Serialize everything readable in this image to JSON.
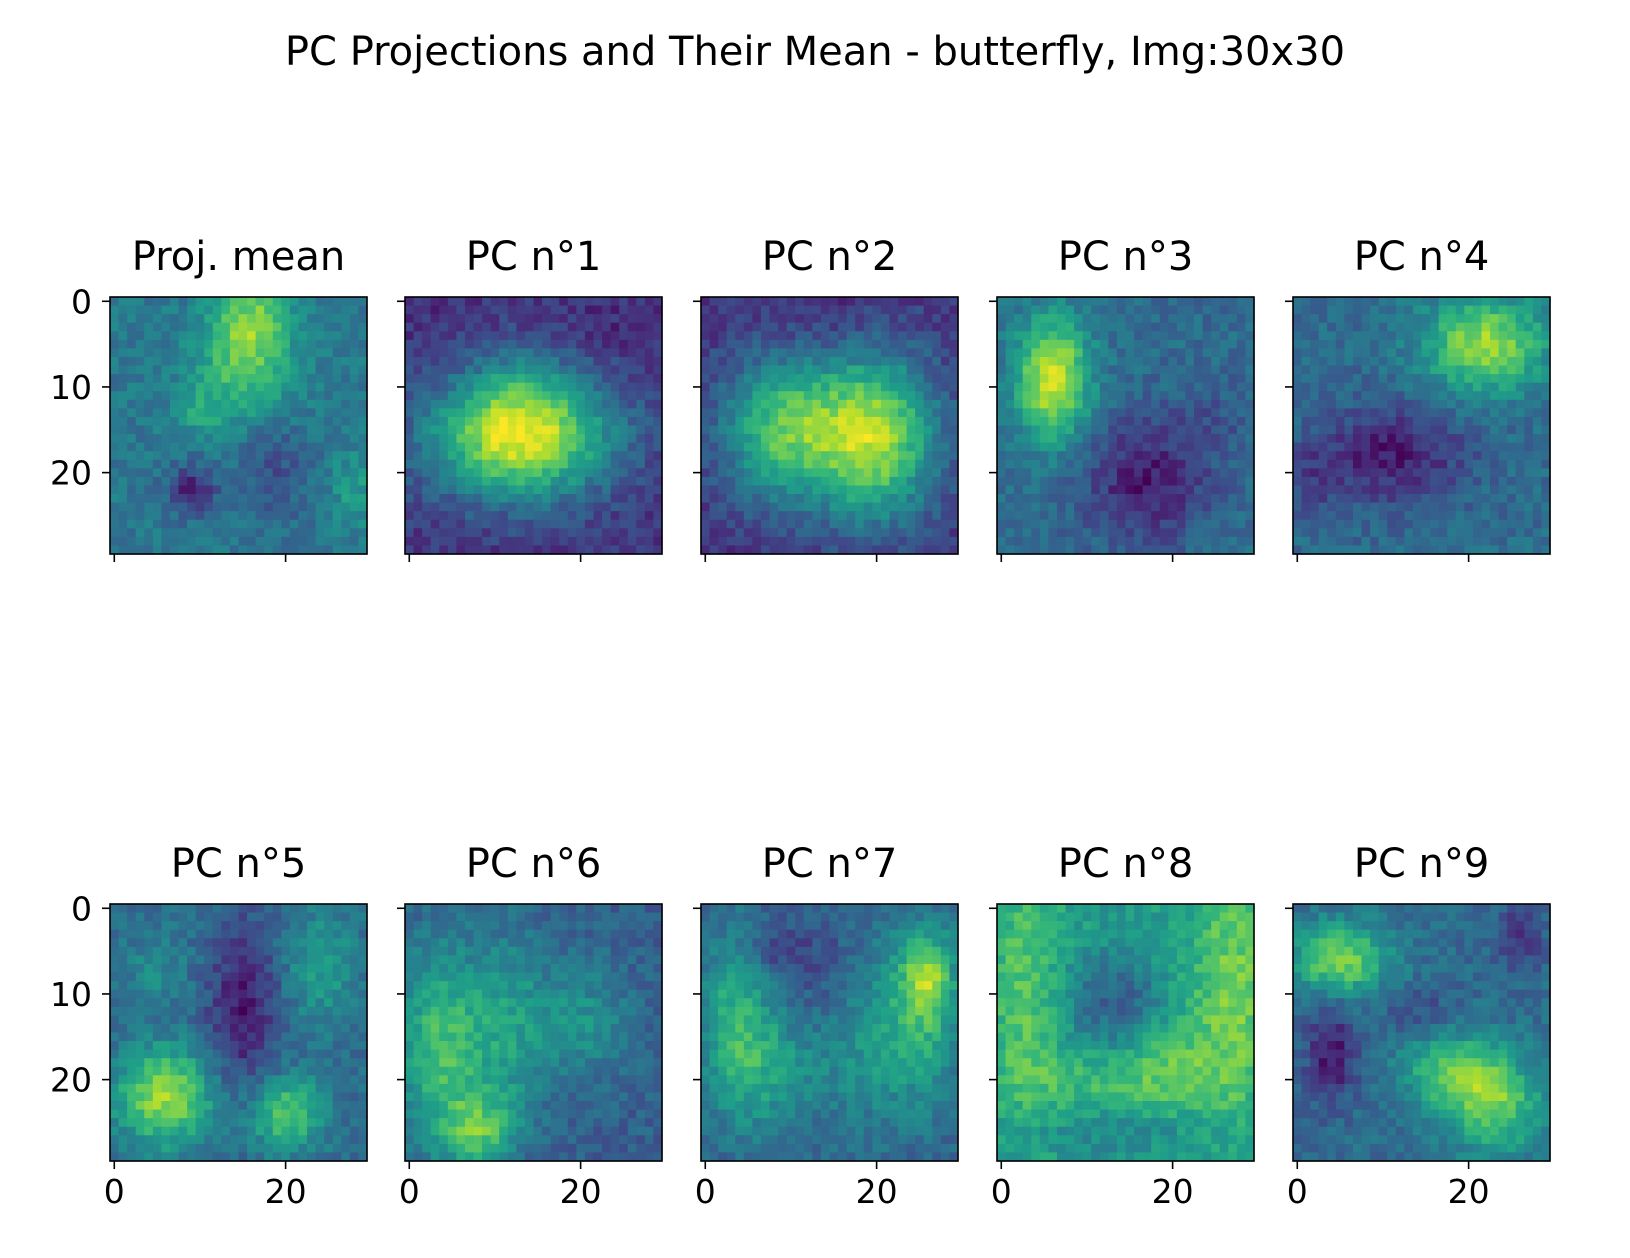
{
  "figure": {
    "suptitle": "PC Projections and Their Mean - butterfly, Img:30x30"
  },
  "colormap": "viridis",
  "chart_data": [
    {
      "type": "heatmap",
      "title": "Proj. mean",
      "size": [
        30,
        30
      ],
      "xticks": [
        0,
        20
      ],
      "yticks": [
        0,
        10,
        20
      ],
      "xtick_labels_shown": false,
      "ytick_labels_shown": true
    },
    {
      "type": "heatmap",
      "title": "PC n°1",
      "size": [
        30,
        30
      ],
      "xticks": [
        0,
        20
      ],
      "yticks": [
        0,
        10,
        20
      ],
      "xtick_labels_shown": false,
      "ytick_labels_shown": false
    },
    {
      "type": "heatmap",
      "title": "PC n°2",
      "size": [
        30,
        30
      ],
      "xticks": [
        0,
        20
      ],
      "yticks": [
        0,
        10,
        20
      ],
      "xtick_labels_shown": false,
      "ytick_labels_shown": false
    },
    {
      "type": "heatmap",
      "title": "PC n°3",
      "size": [
        30,
        30
      ],
      "xticks": [
        0,
        20
      ],
      "yticks": [
        0,
        10,
        20
      ],
      "xtick_labels_shown": false,
      "ytick_labels_shown": false
    },
    {
      "type": "heatmap",
      "title": "PC n°4",
      "size": [
        30,
        30
      ],
      "xticks": [
        0,
        20
      ],
      "yticks": [
        0,
        10,
        20
      ],
      "xtick_labels_shown": false,
      "ytick_labels_shown": false
    },
    {
      "type": "heatmap",
      "title": "PC n°5",
      "size": [
        30,
        30
      ],
      "xticks": [
        0,
        20
      ],
      "yticks": [
        0,
        10,
        20
      ],
      "xtick_labels_shown": true,
      "ytick_labels_shown": true
    },
    {
      "type": "heatmap",
      "title": "PC n°6",
      "size": [
        30,
        30
      ],
      "xticks": [
        0,
        20
      ],
      "yticks": [
        0,
        10,
        20
      ],
      "xtick_labels_shown": true,
      "ytick_labels_shown": false
    },
    {
      "type": "heatmap",
      "title": "PC n°7",
      "size": [
        30,
        30
      ],
      "xticks": [
        0,
        20
      ],
      "yticks": [
        0,
        10,
        20
      ],
      "xtick_labels_shown": true,
      "ytick_labels_shown": false
    },
    {
      "type": "heatmap",
      "title": "PC n°8",
      "size": [
        30,
        30
      ],
      "xticks": [
        0,
        20
      ],
      "yticks": [
        0,
        10,
        20
      ],
      "xtick_labels_shown": true,
      "ytick_labels_shown": false
    },
    {
      "type": "heatmap",
      "title": "PC n°9",
      "size": [
        30,
        30
      ],
      "xticks": [
        0,
        20
      ],
      "yticks": [
        0,
        10,
        20
      ],
      "xtick_labels_shown": true,
      "ytick_labels_shown": false
    }
  ]
}
